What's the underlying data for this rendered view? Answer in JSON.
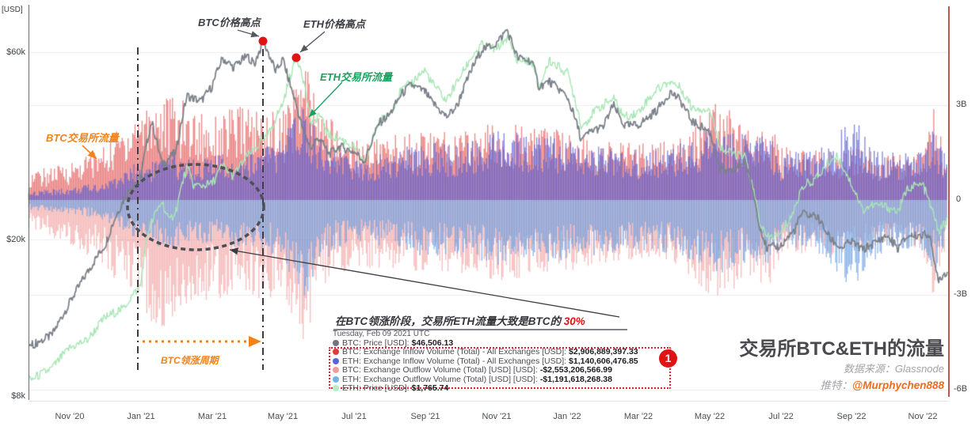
{
  "axes": {
    "left": {
      "unit_label": "[USD]",
      "ticks": [
        {
          "label": "$60k",
          "value": 60000
        },
        {
          "label": "$20k",
          "value": 20000
        },
        {
          "label": "$8k",
          "value": 8000
        }
      ]
    },
    "right": {
      "ticks": [
        {
          "label": "3B",
          "value": 3
        },
        {
          "label": "0",
          "value": 0
        },
        {
          "label": "-3B",
          "value": -3
        },
        {
          "label": "-6B",
          "value": -6
        }
      ]
    },
    "x": {
      "labels": [
        "Nov '20",
        "Jan '21",
        "Mar '21",
        "May '21",
        "Jul '21",
        "Sep '21",
        "Nov '21",
        "Jan '22",
        "Mar '22",
        "May '22",
        "Jul '22",
        "Sep '22",
        "Nov '22"
      ]
    }
  },
  "annotations": {
    "btc_peak_label": "BTC价格高点",
    "eth_peak_label": "ETH价格高点",
    "eth_flow_label": "ETH交易所流量",
    "btc_flow_label": "BTC交易所流量",
    "lead_cycle_label": "BTC领涨周期",
    "note_prefix": "在BTC领涨阶段，交易所ETH流量大致是BTC的 ",
    "note_highlight": "30%",
    "badge": "1"
  },
  "tooltip": {
    "date": "Tuesday, Feb 09 2021 UTC",
    "rows": [
      {
        "label": "BTC: Price [USD]:",
        "value": "$46,506.13",
        "color": "#73737e"
      },
      {
        "label": "BTC: Exchange Inflow Volume (Total) - All Exchanges [USD]:",
        "value": "$2,906,889,397.33",
        "color": "#e03a3a"
      },
      {
        "label": "ETH: Exchange Inflow Volume (Total) - All Exchanges [USD]:",
        "value": "$1,140,606,476.85",
        "color": "#5a64d8"
      },
      {
        "label": "BTC: Exchange Outflow Volume (Total) [USD] [USD]:",
        "value": "-$2,553,206,566.99",
        "color": "#f29a9a"
      },
      {
        "label": "ETH: Exchange Outflow Volume (Total) [USD] [USD]:",
        "value": "-$1,191,618,268.38",
        "color": "#74b3ea"
      },
      {
        "label": "ETH: Price [USD]:",
        "value": "$1,765.74",
        "color": "#b6edc7"
      }
    ]
  },
  "footer": {
    "title": "交易所BTC&ETH的流量",
    "source_prefix": "数据来源：",
    "source": "Glassnode",
    "twitter_prefix": "推特：",
    "twitter": "@Murphychen888"
  },
  "chart_data": {
    "type": "mixed",
    "x_axis": {
      "unit": "months since 2020-10-01",
      "range": [
        -0.15,
        25.69
      ],
      "tick_labels": [
        "Nov '20",
        "Jan '21",
        "Mar '21",
        "May '21",
        "Jul '21",
        "Sep '21",
        "Nov '21",
        "Jan '22",
        "Mar '22",
        "May '22",
        "Jul '22",
        "Sep '22",
        "Nov '22"
      ],
      "tick_months": [
        1,
        3,
        5,
        7,
        9,
        11,
        13,
        15,
        17,
        19,
        21,
        23,
        25
      ]
    },
    "left_axis": {
      "label": "[USD]",
      "scale": "log",
      "ticks": [
        60000,
        20000,
        8000
      ]
    },
    "right_axis": {
      "label": "USD billions",
      "scale": "linear",
      "ticks": [
        3,
        0,
        -3,
        -6
      ],
      "range": [
        -6.5,
        3.2
      ]
    },
    "legend_position": "none",
    "grid": true,
    "series": [
      {
        "name": "BTC: Price [USD]",
        "type": "line",
        "color": "#7c828a",
        "axis": "left-log",
        "x_months": [
          -0.15,
          0.5,
          1,
          1.5,
          2,
          2.3,
          2.7,
          3,
          3.3,
          3.6,
          4,
          4.3,
          4.7,
          5,
          5.3,
          5.6,
          6,
          6.2,
          6.45,
          6.8,
          7,
          7.2,
          7.6,
          7.8,
          8,
          8.3,
          8.6,
          9,
          9.3,
          9.7,
          10,
          10.3,
          10.6,
          11,
          11.2,
          11.6,
          11.9,
          12.3,
          12.6,
          13,
          13.3,
          13.6,
          14,
          14.2,
          14.5,
          15,
          15.4,
          15.7,
          16,
          16.3,
          16.6,
          17,
          17.5,
          17.9,
          18.2,
          18.5,
          19,
          19.3,
          19.6,
          20,
          20.4,
          20.6,
          21,
          21.4,
          21.6,
          22,
          22.4,
          22.7,
          23,
          23.3,
          23.6,
          24,
          24.3,
          24.6,
          25,
          25.2,
          25.3,
          25.45,
          25.69
        ],
        "values_usd": [
          10700,
          11400,
          13800,
          16500,
          19400,
          23000,
          27000,
          29000,
          40000,
          31000,
          33500,
          46500,
          45000,
          49000,
          58000,
          55000,
          58700,
          56000,
          64000,
          53500,
          57500,
          49500,
          37000,
          34000,
          36500,
          33000,
          34500,
          33500,
          31600,
          39500,
          41500,
          46500,
          49500,
          47500,
          44700,
          41000,
          43800,
          54000,
          61000,
          63000,
          68500,
          58000,
          57000,
          49000,
          50500,
          46200,
          35800,
          38000,
          38500,
          44000,
          39000,
          39200,
          42500,
          47500,
          45000,
          40000,
          37700,
          30000,
          29500,
          31800,
          22000,
          19000,
          19300,
          21200,
          23300,
          23000,
          20100,
          19000,
          19800,
          18800,
          19500,
          20500,
          19000,
          20500,
          20500,
          20800,
          17600,
          15900,
          16600
        ]
      },
      {
        "name": "ETH: Price [USD]",
        "type": "line",
        "color": "#a7e6b5",
        "axis": "hidden-log",
        "x_months": [
          -0.15,
          0.5,
          1,
          1.5,
          2,
          2.5,
          3,
          3.2,
          3.4,
          3.6,
          3.8,
          4,
          4.3,
          4.5,
          5,
          5.3,
          5.6,
          6,
          6.3,
          6.6,
          7,
          7.37,
          7.5,
          7.6,
          7.8,
          8,
          8.3,
          8.6,
          9,
          9.3,
          9.7,
          10,
          10.3,
          10.6,
          11,
          11.2,
          11.6,
          11.9,
          12.3,
          12.6,
          13,
          13.3,
          13.6,
          14,
          14.2,
          14.5,
          15,
          15.4,
          15.7,
          16,
          16.3,
          16.6,
          17,
          17.5,
          17.9,
          18.2,
          18.5,
          19,
          19.3,
          19.6,
          20,
          20.4,
          20.6,
          21,
          21.4,
          21.6,
          22,
          22.4,
          22.6,
          23,
          23.3,
          23.6,
          24,
          24.3,
          24.6,
          25,
          25.3,
          25.45,
          25.69
        ],
        "values_usd": [
          350,
          385,
          450,
          480,
          570,
          610,
          730,
          1100,
          1250,
          1390,
          1180,
          1310,
          1800,
          1560,
          1580,
          1830,
          1680,
          1970,
          2130,
          2320,
          2950,
          4170,
          3900,
          3400,
          2450,
          2710,
          2300,
          2250,
          2100,
          1830,
          2550,
          2700,
          3200,
          3430,
          3800,
          3430,
          3000,
          3450,
          4180,
          4600,
          4440,
          4850,
          4100,
          4050,
          3280,
          4070,
          3720,
          2450,
          2700,
          2900,
          3050,
          2650,
          2750,
          3250,
          3480,
          3300,
          2850,
          2800,
          2100,
          2000,
          1950,
          1200,
          1050,
          1070,
          1300,
          1550,
          1650,
          1900,
          1950,
          1580,
          1300,
          1350,
          1330,
          1280,
          1550,
          1570,
          1250,
          1100,
          1200
        ]
      },
      {
        "name": "BTC: Exchange Inflow Volume (Total) [USD]",
        "type": "bar",
        "color": "#df4646",
        "axis": "right",
        "envelope_x_months": [
          -0.15,
          1,
          2,
          3,
          3.5,
          4,
          4.5,
          5,
          5.5,
          6,
          6.5,
          7,
          7.6,
          8,
          8.5,
          9,
          10,
          11,
          12,
          13,
          14,
          15,
          16,
          17,
          18,
          19.3,
          20,
          20.7,
          21,
          22,
          23,
          24,
          25,
          25.3,
          25.69
        ],
        "envelope_values_billion_usd": [
          0.9,
          1.2,
          1.8,
          3.2,
          3.4,
          3.3,
          2.9,
          2.7,
          2.9,
          3.0,
          2.9,
          2.8,
          4.6,
          3.0,
          2.4,
          2.0,
          2.1,
          2.3,
          2.2,
          2.5,
          2.3,
          2.2,
          1.9,
          1.8,
          1.9,
          3.3,
          2.4,
          2.6,
          1.7,
          1.6,
          1.7,
          1.4,
          1.5,
          3.0,
          1.3
        ]
      },
      {
        "name": "ETH: Exchange Inflow Volume (Total) [USD]",
        "type": "bar",
        "color": "#5c60d0",
        "axis": "right",
        "envelope_x_months": [
          -0.15,
          1,
          2,
          3,
          3.5,
          4,
          4.5,
          5,
          5.5,
          6,
          6.5,
          7,
          7.6,
          8,
          8.5,
          9,
          10,
          11,
          12,
          13,
          14,
          15,
          16,
          17,
          18,
          19.3,
          20,
          20.7,
          21,
          22,
          23,
          24,
          25,
          25.3,
          25.69
        ],
        "envelope_values_billion_usd": [
          0.28,
          0.4,
          0.6,
          1.3,
          1.4,
          1.5,
          1.4,
          1.4,
          1.5,
          1.7,
          1.8,
          2.0,
          3.4,
          2.2,
          1.7,
          1.3,
          1.6,
          1.9,
          1.7,
          2.2,
          2.1,
          2.0,
          1.7,
          1.6,
          1.7,
          2.5,
          2.1,
          2.2,
          1.5,
          1.6,
          2.6,
          1.5,
          1.6,
          2.3,
          1.3
        ]
      },
      {
        "name": "BTC: Exchange Outflow Volume (Total) [USD]",
        "type": "bar",
        "color": "#ee8282",
        "axis": "right",
        "envelope_x_months": [
          -0.15,
          1,
          2,
          3,
          3.5,
          4,
          4.5,
          5,
          5.5,
          6,
          6.5,
          7,
          7.6,
          8,
          8.5,
          9,
          10,
          11,
          12,
          13,
          14,
          15,
          16,
          17,
          18,
          19.3,
          20,
          20.7,
          21,
          22,
          23,
          24,
          25,
          25.3,
          25.69
        ],
        "envelope_values_billion_usd": [
          -1.0,
          -1.4,
          -2.1,
          -3.6,
          -4.1,
          -3.9,
          -3.3,
          -3.1,
          -3.2,
          -3.3,
          -3.2,
          -3.1,
          -4.5,
          -3.2,
          -2.6,
          -2.1,
          -2.2,
          -2.4,
          -2.3,
          -2.6,
          -2.4,
          -2.3,
          -2.0,
          -1.9,
          -2.0,
          -3.4,
          -2.5,
          -2.7,
          -1.8,
          -1.7,
          -1.8,
          -1.5,
          -1.6,
          -3.1,
          -1.4
        ]
      },
      {
        "name": "ETH: Exchange Outflow Volume (Total) [USD]",
        "type": "bar",
        "color": "#6ea0e1",
        "axis": "right",
        "envelope_x_months": [
          -0.15,
          1,
          2,
          3,
          3.5,
          4,
          4.5,
          5,
          5.5,
          6,
          6.5,
          7,
          7.6,
          8,
          8.5,
          9,
          10,
          11,
          12,
          13,
          14,
          15,
          16,
          17,
          18,
          19.3,
          20,
          20.7,
          21,
          22,
          23,
          24,
          25,
          25.3,
          25.69
        ],
        "envelope_values_billion_usd": [
          -0.3,
          -0.45,
          -0.65,
          -1.4,
          -1.5,
          -1.5,
          -1.4,
          -1.4,
          -1.5,
          -1.6,
          -1.7,
          -1.9,
          -3.2,
          -2.1,
          -1.6,
          -1.3,
          -1.5,
          -1.8,
          -1.7,
          -2.1,
          -2.0,
          -1.9,
          -1.7,
          -1.6,
          -1.7,
          -2.4,
          -2.0,
          -2.1,
          -1.5,
          -1.6,
          -2.8,
          -1.5,
          -1.6,
          -2.4,
          -1.3
        ]
      }
    ],
    "markers": [
      {
        "label": "BTC价格高点",
        "x_month": 6.45,
        "price_usd": 64000,
        "color": "#e01414"
      },
      {
        "label": "ETH价格高点",
        "x_month": 7.37,
        "price_usd": 4170,
        "color": "#e01414"
      }
    ]
  }
}
